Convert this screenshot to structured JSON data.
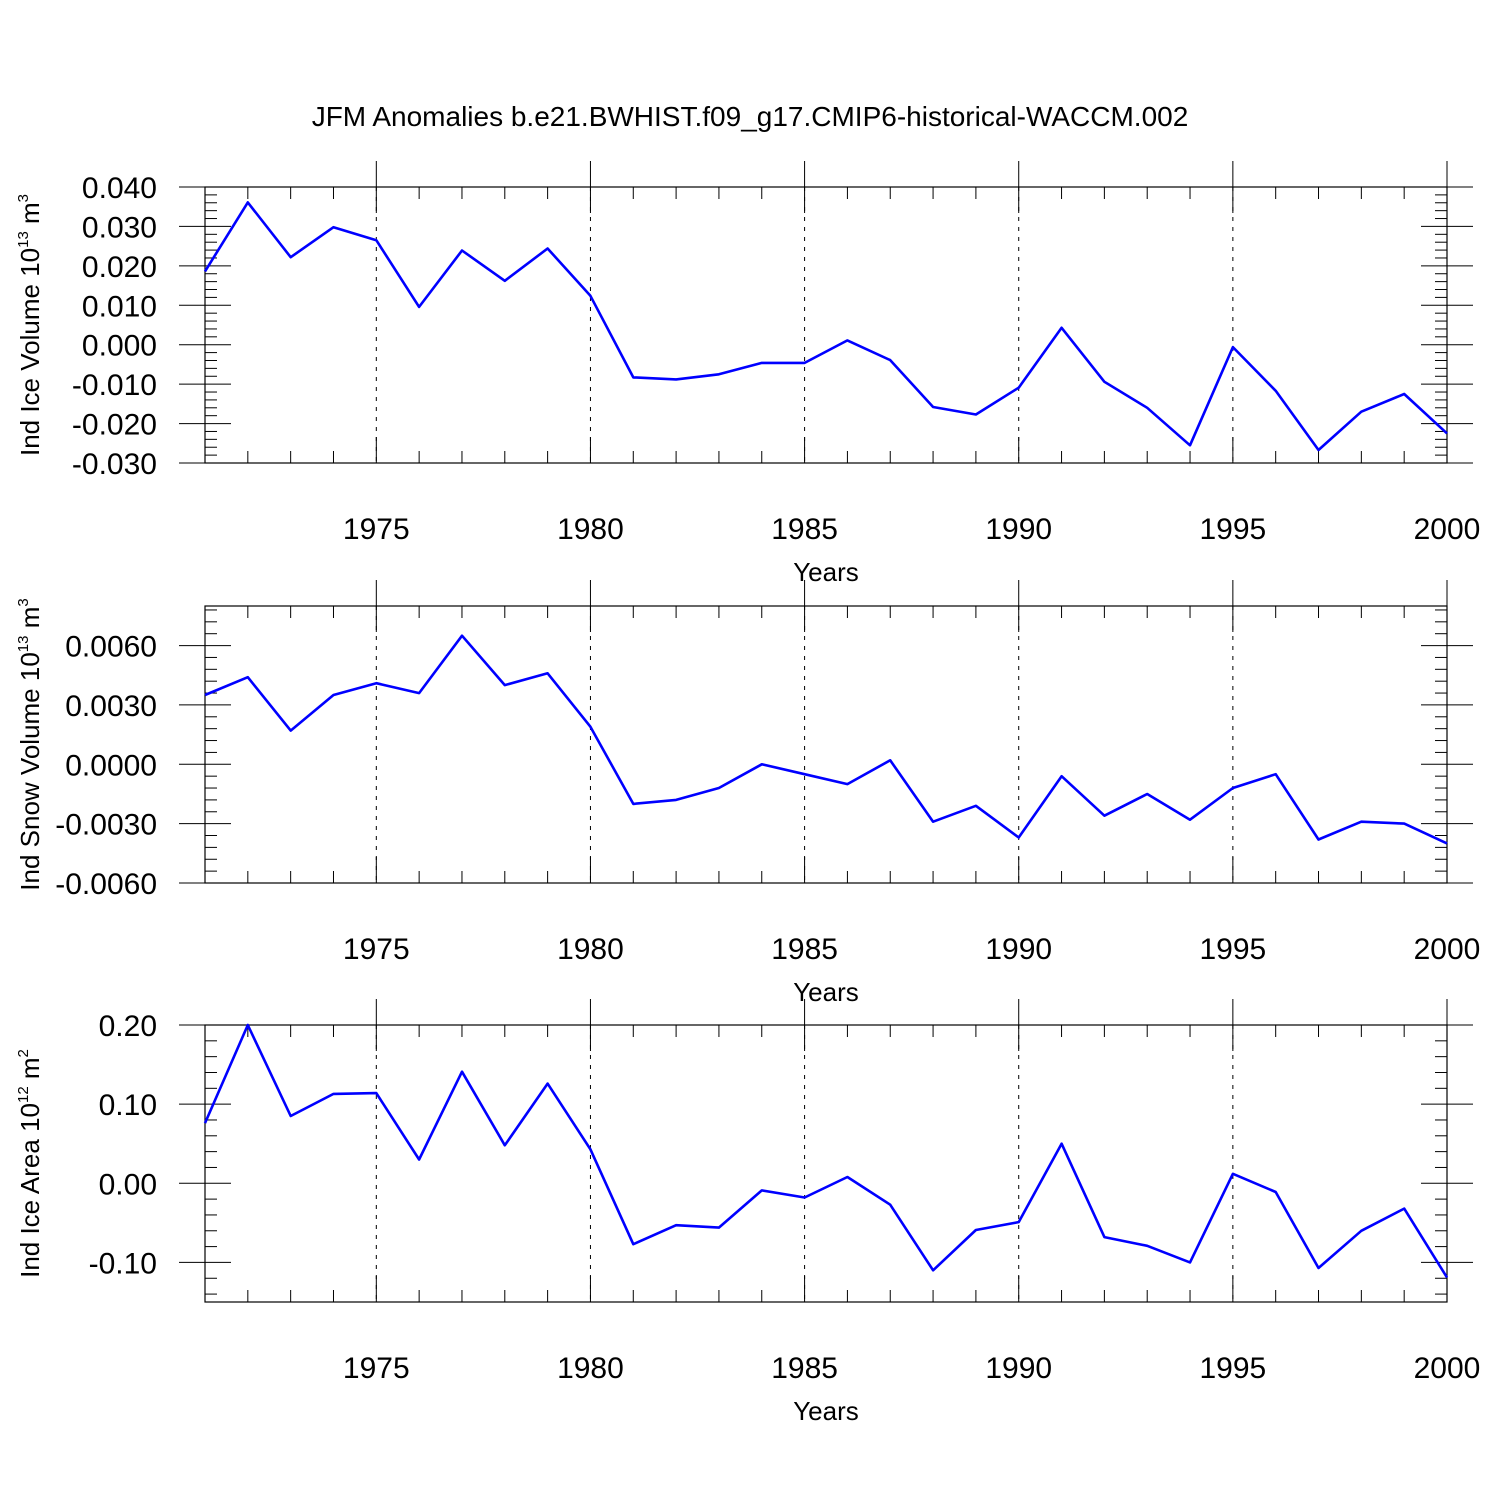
{
  "title": "JFM Anomalies b.e21.BWHIST.f09_g17.CMIP6-historical-WACCM.002",
  "line_color": "#0000ff",
  "chart_data": [
    {
      "type": "line",
      "ylabel": {
        "text": "Ind Ice Volume 10",
        "sup": "13",
        "unit": " m",
        "unit_sup": "3"
      },
      "xlabel": "Years",
      "xlim": [
        1971,
        2000
      ],
      "ylim": [
        -0.03,
        0.04
      ],
      "xticks": [
        1975,
        1980,
        1985,
        1990,
        1995,
        2000
      ],
      "yticks": [
        -0.03,
        -0.02,
        -0.01,
        0.0,
        0.01,
        0.02,
        0.03,
        0.04
      ],
      "ytick_labels": [
        "-0.030",
        "-0.020",
        "-0.010",
        "0.000",
        "0.010",
        "0.020",
        "0.030",
        "0.040"
      ],
      "grid": "dashed vertical at x ticks",
      "x": [
        1971,
        1972,
        1973,
        1974,
        1975,
        1976,
        1977,
        1978,
        1979,
        1980,
        1981,
        1982,
        1983,
        1984,
        1985,
        1986,
        1987,
        1988,
        1989,
        1990,
        1991,
        1992,
        1993,
        1994,
        1995,
        1996,
        1997,
        1998,
        1999,
        2000
      ],
      "y": [
        0.0186,
        0.0361,
        0.0222,
        0.0298,
        0.0265,
        0.0096,
        0.0239,
        0.0162,
        0.0244,
        0.0124,
        -0.0083,
        -0.0088,
        -0.0075,
        -0.0046,
        -0.0046,
        0.0011,
        -0.0039,
        -0.0158,
        -0.0177,
        -0.0109,
        0.0043,
        -0.0094,
        -0.016,
        -0.0255,
        -0.0006,
        -0.0117,
        -0.0267,
        -0.017,
        -0.0125,
        -0.0225
      ]
    },
    {
      "type": "line",
      "ylabel": {
        "text": "Ind Snow Volume 10",
        "sup": "13",
        "unit": " m",
        "unit_sup": "3"
      },
      "xlabel": "Years",
      "xlim": [
        1971,
        2000
      ],
      "ylim": [
        -0.006,
        0.008
      ],
      "xticks": [
        1975,
        1980,
        1985,
        1990,
        1995,
        2000
      ],
      "yticks": [
        -0.006,
        -0.003,
        0.0,
        0.003,
        0.006
      ],
      "ytick_labels": [
        "-0.0060",
        "-0.0030",
        "0.0000",
        "0.0030",
        "0.0060"
      ],
      "grid": "dashed vertical at x ticks",
      "x": [
        1971,
        1972,
        1973,
        1974,
        1975,
        1976,
        1977,
        1978,
        1979,
        1980,
        1981,
        1982,
        1983,
        1984,
        1985,
        1986,
        1987,
        1988,
        1989,
        1990,
        1991,
        1992,
        1993,
        1994,
        1995,
        1996,
        1997,
        1998,
        1999,
        2000
      ],
      "y": [
        0.0035,
        0.0044,
        0.0017,
        0.0035,
        0.0041,
        0.0036,
        0.0065,
        0.004,
        0.0046,
        0.0019,
        -0.002,
        -0.0018,
        -0.0012,
        0.0,
        -0.0005,
        -0.001,
        0.0002,
        -0.0029,
        -0.0021,
        -0.0037,
        -0.0006,
        -0.0026,
        -0.0015,
        -0.0028,
        -0.0012,
        -0.0005,
        -0.0038,
        -0.0029,
        -0.003,
        -0.004
      ]
    },
    {
      "type": "line",
      "ylabel": {
        "text": "Ind Ice Area 10",
        "sup": "12",
        "unit": " m",
        "unit_sup": "2"
      },
      "xlabel": "Years",
      "xlim": [
        1971,
        2000
      ],
      "ylim": [
        -0.15,
        0.2
      ],
      "xticks": [
        1975,
        1980,
        1985,
        1990,
        1995,
        2000
      ],
      "yticks": [
        -0.1,
        0.0,
        0.1,
        0.2
      ],
      "ytick_labels": [
        "-0.10",
        "0.00",
        "0.10",
        "0.20"
      ],
      "grid": "dashed vertical at x ticks",
      "x": [
        1971,
        1972,
        1973,
        1974,
        1975,
        1976,
        1977,
        1978,
        1979,
        1980,
        1981,
        1982,
        1983,
        1984,
        1985,
        1986,
        1987,
        1988,
        1989,
        1990,
        1991,
        1992,
        1993,
        1994,
        1995,
        1996,
        1997,
        1998,
        1999,
        2000
      ],
      "y": [
        0.076,
        0.2,
        0.085,
        0.113,
        0.114,
        0.03,
        0.141,
        0.048,
        0.126,
        0.043,
        -0.077,
        -0.053,
        -0.056,
        -0.009,
        -0.018,
        0.008,
        -0.027,
        -0.11,
        -0.059,
        -0.049,
        0.05,
        -0.068,
        -0.079,
        -0.1,
        0.012,
        -0.011,
        -0.107,
        -0.06,
        -0.032,
        -0.119
      ]
    }
  ]
}
